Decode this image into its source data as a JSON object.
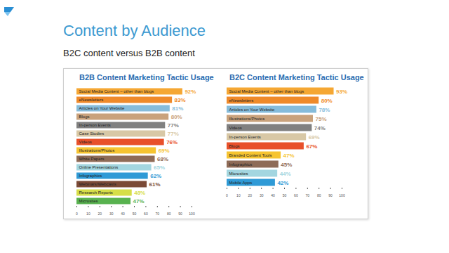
{
  "header": {
    "title": "Content by Audience",
    "subtitle": "B2C content versus B2B content"
  },
  "chart_data": [
    {
      "type": "bar",
      "orientation": "horizontal",
      "title": "B2B Content Marketing Tactic Usage",
      "categories": [
        "Social Media Content – other than blogs",
        "eNewsletters",
        "Articles on Your Website",
        "Blogs",
        "In-person Events",
        "Case Studies",
        "Videos",
        "Illustrations/Photos",
        "White Papers",
        "Online Presentations",
        "Infographics",
        "Webinars/Webcasts",
        "Research Reports",
        "Microsites"
      ],
      "values": [
        92,
        83,
        81,
        80,
        77,
        77,
        76,
        69,
        68,
        65,
        62,
        61,
        48,
        47
      ],
      "value_labels": [
        "92%",
        "83%",
        "81%",
        "80%",
        "77%",
        "77%",
        "76%",
        "69%",
        "68%",
        "65%",
        "62%",
        "61%",
        "48%",
        "47%"
      ],
      "colors": [
        "#f5a733",
        "#ef8a2a",
        "#86bcdb",
        "#c9a27c",
        "#808080",
        "#d8c8a6",
        "#e8502a",
        "#f6c431",
        "#8e6b57",
        "#a3d6e0",
        "#2f9ad6",
        "#7b4a36",
        "#d6de48",
        "#58b24f"
      ],
      "data_labels": true,
      "xlim": [
        0,
        100
      ],
      "xticks": [
        0,
        10,
        20,
        30,
        40,
        50,
        60,
        70,
        80,
        90,
        100
      ]
    },
    {
      "type": "bar",
      "orientation": "horizontal",
      "title": "B2C Content Marketing Tactic Usage",
      "categories": [
        "Social Media Content – other than blogs",
        "eNewsletters",
        "Articles on Your Website",
        "Illustrations/Photos",
        "Videos",
        "In-person Events",
        "Blogs",
        "Branded Content Tools",
        "Infographics",
        "Microsites",
        "Mobile Apps"
      ],
      "values": [
        93,
        80,
        78,
        75,
        74,
        69,
        67,
        47,
        45,
        44,
        42
      ],
      "value_labels": [
        "93%",
        "80%",
        "78%",
        "75%",
        "74%",
        "69%",
        "67%",
        "47%",
        "45%",
        "44%",
        "42%"
      ],
      "colors": [
        "#f5a733",
        "#ef8a2a",
        "#86bcdb",
        "#c9a27c",
        "#808080",
        "#d8c8a6",
        "#e8502a",
        "#f6c431",
        "#8e6b57",
        "#a3d6e0",
        "#2f9ad6"
      ],
      "data_labels": true,
      "xlim": [
        0,
        100
      ],
      "xticks": [
        0,
        10,
        20,
        30,
        40,
        50,
        60,
        70,
        80,
        90,
        100
      ]
    }
  ]
}
